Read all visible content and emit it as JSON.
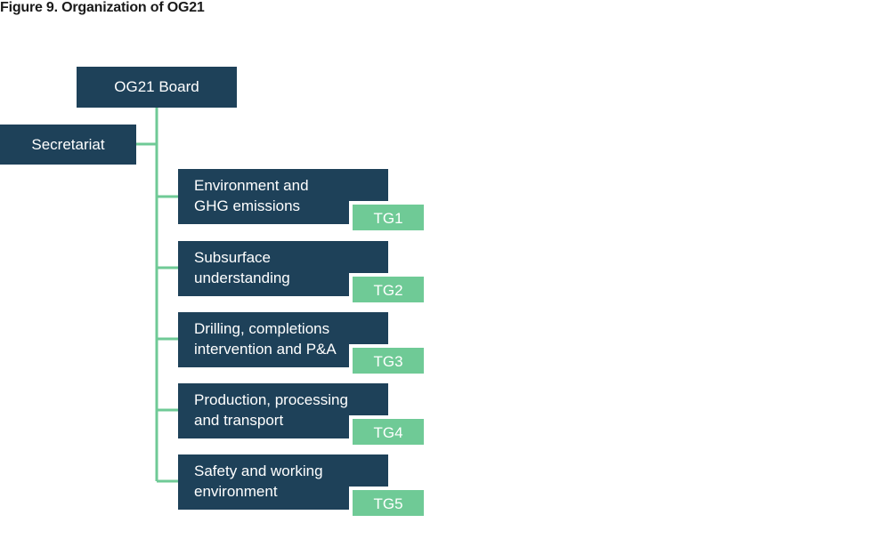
{
  "figure": {
    "title": "Figure 9. Organization of OG21"
  },
  "board": {
    "label": "OG21 Board"
  },
  "secretariat": {
    "label": "Secretariat"
  },
  "groups": [
    {
      "line1": "Environment and",
      "line2": "GHG emissions",
      "tag": "TG1"
    },
    {
      "line1": "Subsurface",
      "line2": "understanding",
      "tag": "TG2"
    },
    {
      "line1": "Drilling, completions",
      "line2": "intervention and P&A",
      "tag": "TG3"
    },
    {
      "line1": "Production, processing",
      "line2": "and transport",
      "tag": "TG4"
    },
    {
      "line1": "Safety and working",
      "line2": "environment",
      "tag": "TG5"
    }
  ],
  "colors": {
    "box": "#1e4159",
    "tag": "#6fca96",
    "connector": "#6fca96"
  }
}
